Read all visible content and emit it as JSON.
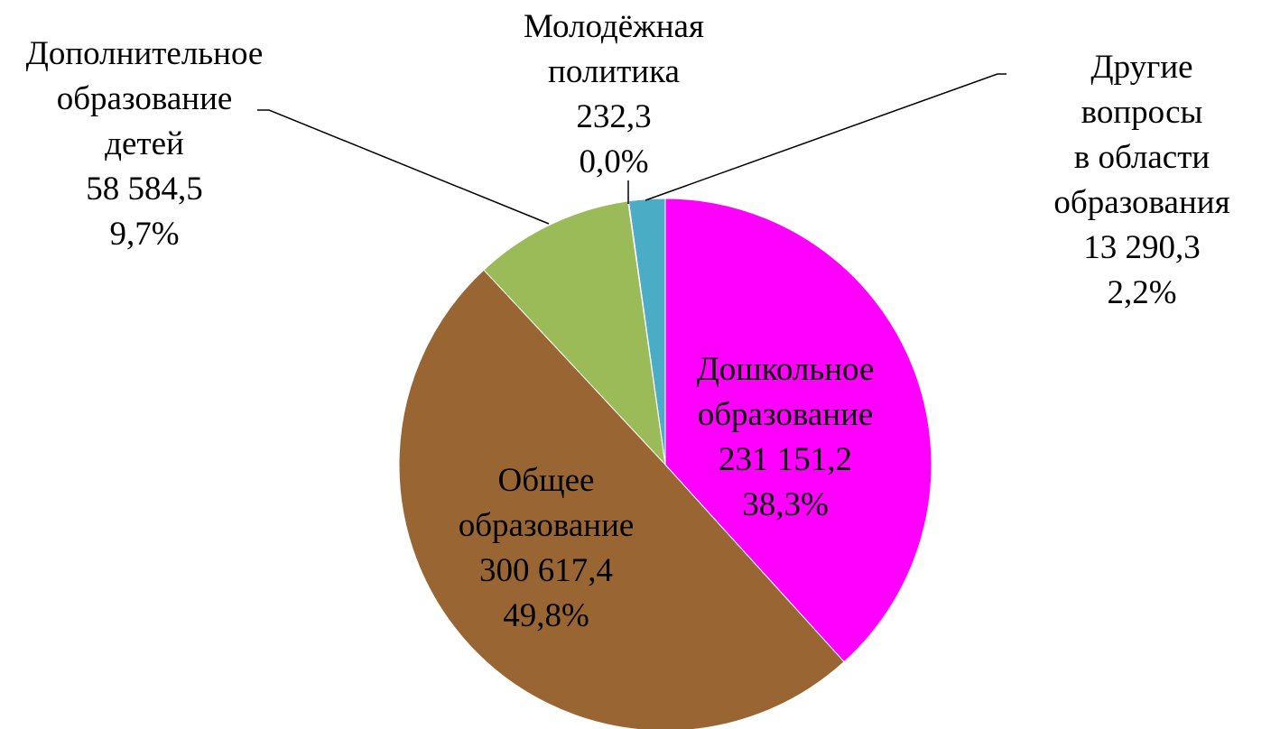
{
  "chart_data": {
    "type": "pie",
    "categories": [
      "Дошкольное\nобразование",
      "Общее\nобразование",
      "Дополнительное\nобразование\nдетей",
      "Молодёжная\nполитика",
      "Другие вопросы\nв области\nобразования"
    ],
    "values": [
      231151.2,
      300617.4,
      58584.5,
      232.3,
      13290.3
    ],
    "value_labels": [
      "231 151,2",
      "300 617,4",
      "58 584,5",
      "232,3",
      "13 290,3"
    ],
    "percents": [
      38.3,
      49.8,
      9.7,
      0.0,
      2.2
    ],
    "percent_labels": [
      "38,3%",
      "49,8%",
      "9,7%",
      "0,0%",
      "2,2%"
    ],
    "colors": [
      "#ff00ff",
      "#996633",
      "#9bbb59",
      "#f79646",
      "#4bacc6"
    ]
  }
}
